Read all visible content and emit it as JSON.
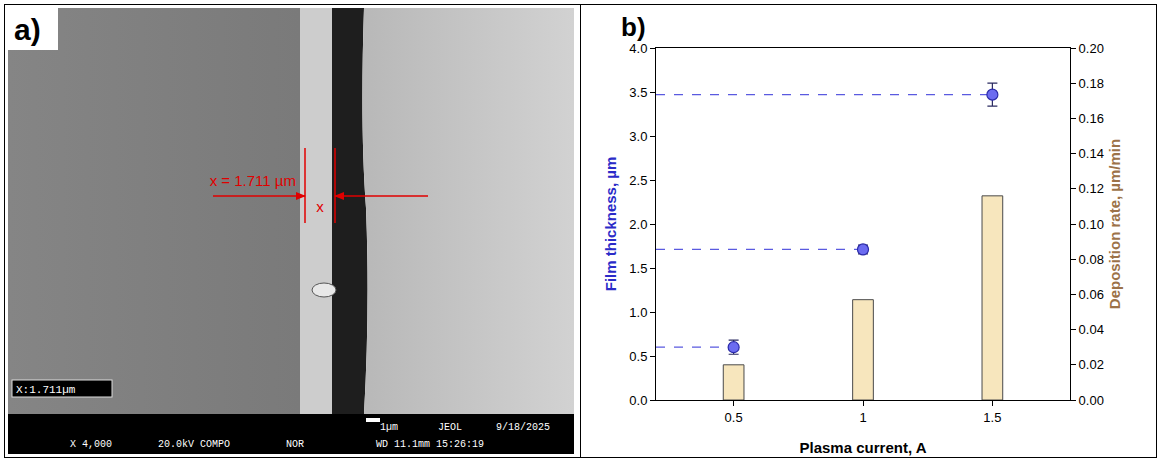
{
  "panel_a": {
    "label": "a)",
    "annotation": "x = 1.711 µm",
    "marker_label": "x",
    "measure_box": "X:1.711µm",
    "footer_top": [
      "1µm",
      "JEOL",
      "9/18/2025"
    ],
    "footer_bottom": [
      "X 4,000",
      "20.0kV COMPO",
      "NOR",
      "WD 11.1mm 15:26:19"
    ]
  },
  "chart_data": {
    "type": "bar",
    "label": "b)",
    "xlabel": "Plasma current, A",
    "ylabel": "Film thickness, µm",
    "y2label": "Deposition rate, µm/min",
    "x": [
      0.5,
      1,
      1.5
    ],
    "xlim": [
      0.2,
      1.8
    ],
    "xticks": [
      0.5,
      1,
      1.5
    ],
    "ylim": [
      0,
      4
    ],
    "yticks": [
      {
        "value": 0,
        "label": "0.0"
      },
      0.5,
      {
        "value": 1,
        "label": "1.0"
      },
      1.5,
      {
        "value": 2,
        "label": "2.0"
      },
      2.5,
      {
        "value": 3,
        "label": "3.0"
      },
      3.5,
      {
        "value": 4,
        "label": "4.0"
      }
    ],
    "y2lim": [
      0,
      0.2
    ],
    "y2ticks": [
      {
        "value": 0,
        "label": "0.00"
      },
      0.02,
      0.04,
      0.06,
      0.08,
      {
        "value": 0.1,
        "label": "0.10"
      },
      0.12,
      0.14,
      0.16,
      0.18,
      {
        "value": 0.2,
        "label": "0.20"
      }
    ],
    "grid": false,
    "series": [
      {
        "type": "scatter",
        "marker": "circle",
        "color": "#6b6bf0",
        "values": [
          0.6,
          1.711,
          3.47
        ],
        "error": [
          0.08,
          0.05,
          0.13
        ]
      },
      {
        "type": "bar",
        "axis": "y2",
        "color": "#f7e6bd",
        "values": [
          0.02,
          0.057,
          0.116
        ]
      }
    ]
  }
}
